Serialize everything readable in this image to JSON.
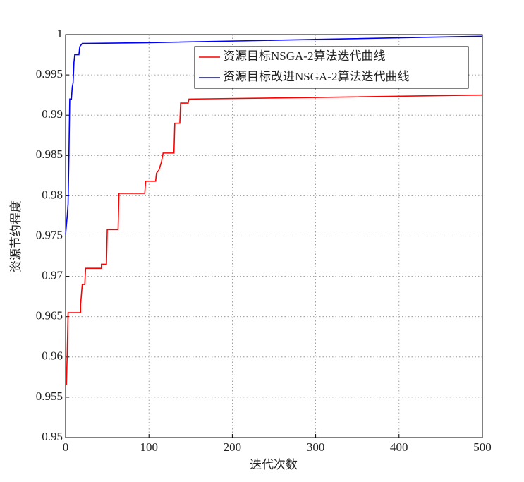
{
  "chart_data": {
    "type": "line",
    "x_label": "迭代次数",
    "y_label": "资源节约程度",
    "xlim": [
      0,
      500
    ],
    "xticks": [
      0,
      100,
      200,
      300,
      400,
      500
    ],
    "ylim": [
      0.95,
      1
    ],
    "yticks": [
      0.95,
      0.955,
      0.96,
      0.965,
      0.97,
      0.975,
      0.98,
      0.985,
      0.99,
      0.995,
      1
    ],
    "grid": true,
    "legend": "upper right",
    "series": [
      {
        "name": "资源目标NSGA-2算法迭代曲线",
        "color": "#ff0000",
        "x": [
          1,
          2,
          3,
          18,
          18,
          20,
          23,
          24,
          43,
          43,
          49,
          50,
          63,
          64,
          95,
          96,
          108,
          109,
          112,
          115,
          117,
          130,
          131,
          137,
          138,
          147,
          148,
          300,
          500
        ],
        "values": [
          0.9565,
          0.9605,
          0.9655,
          0.9655,
          0.9665,
          0.969,
          0.969,
          0.971,
          0.971,
          0.9715,
          0.9715,
          0.9758,
          0.9758,
          0.9803,
          0.9803,
          0.9818,
          0.9818,
          0.9828,
          0.9832,
          0.9842,
          0.9853,
          0.9853,
          0.989,
          0.989,
          0.9915,
          0.9915,
          0.992,
          0.9922,
          0.9925
        ]
      },
      {
        "name": "资源目标改进NSGA-2算法迭代曲线",
        "color": "#0000ff",
        "x": [
          0,
          2,
          3,
          4,
          5,
          7,
          8,
          9,
          10,
          11,
          16,
          17,
          20,
          100,
          300,
          500
        ],
        "values": [
          0.9752,
          0.9775,
          0.979,
          0.985,
          0.992,
          0.992,
          0.9935,
          0.994,
          0.9965,
          0.9975,
          0.9975,
          0.9985,
          0.9989,
          0.999,
          0.9994,
          0.9998
        ]
      }
    ]
  }
}
